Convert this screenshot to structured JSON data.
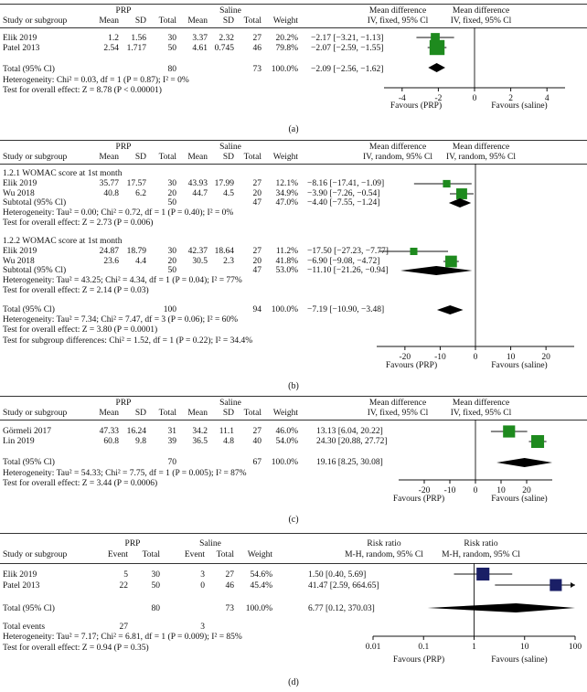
{
  "colors": {
    "green": "#1e8a1e",
    "navy": "#1a1f66",
    "line": "#111111"
  },
  "panels": [
    {
      "caption": "(a)",
      "headers": {
        "study": "Study or subgroup",
        "g1": "PRP",
        "g2": "Saline",
        "mean": "Mean",
        "sd": "SD",
        "total": "Total",
        "weight": "Weight",
        "effect_title": "Mean difference",
        "effect_method": "IV, fixed, 95% Cl",
        "plot_title": "Mean difference",
        "plot_method": "IV, fixed, 95% Cl"
      },
      "rows": [
        {
          "study": "Elik 2019",
          "m1": "1.2",
          "sd1": "1.56",
          "n1": "30",
          "m2": "3.37",
          "sd2": "2.32",
          "n2": "27",
          "w": "20.2%",
          "ci": "−2.17 [−3.21, −1.13]"
        },
        {
          "study": "Patel 2013",
          "m1": "2.54",
          "sd1": "1.717",
          "n1": "50",
          "m2": "4.61",
          "sd2": "0.745",
          "n2": "46",
          "w": "79.8%",
          "ci": "−2.07 [−2.59, −1.55]"
        }
      ],
      "total": {
        "label": "Total (95% Cl)",
        "n1": "80",
        "n2": "73",
        "w": "100.0%",
        "ci": "−2.09 [−2.56, −1.62]"
      },
      "notes": [
        "Heterogeneity: Chi² = 0.03, df = 1 (P = 0.87); I² = 0%",
        "Test for overall effect: Z = 8.78 (P < 0.00001)"
      ],
      "favours_left": "Favours (PRP)",
      "favours_right": "Favours (saline)"
    },
    {
      "caption": "(b)",
      "headers": {
        "study": "Study or subgroup",
        "g1": "PRP",
        "g2": "Saline",
        "mean": "Mean",
        "sd": "SD",
        "total": "Total",
        "weight": "Weight",
        "effect_title": "Mean difference",
        "effect_method": "IV, random, 95% Cl",
        "plot_title": "Mean difference",
        "plot_method": "IV, random, 95% Cl"
      },
      "subgroup1": {
        "title": "1.2.1 WOMAC score at 1st month",
        "rows": [
          {
            "study": "Elik 2019",
            "m1": "35.77",
            "sd1": "17.57",
            "n1": "30",
            "m2": "43.93",
            "sd2": "17.99",
            "n2": "27",
            "w": "12.1%",
            "ci": "−8.16 [−17.41, −1.09]"
          },
          {
            "study": "Wu 2018",
            "m1": "40.8",
            "sd1": "6.2",
            "n1": "20",
            "m2": "44.7",
            "sd2": "4.5",
            "n2": "20",
            "w": "34.9%",
            "ci": "−3.90 [−7.26, −0.54]"
          }
        ],
        "subtotal": {
          "label": "Subtotal (95% Cl)",
          "n1": "50",
          "n2": "47",
          "w": "47.0%",
          "ci": "−4.40 [−7.55, −1.24]"
        },
        "notes": [
          "Heterogeneity: Tau² = 0.00; Chi² = 0.72, df = 1 (P = 0.40); I² = 0%",
          "Test for overall effect: Z = 2.73 (P = 0.006)"
        ]
      },
      "subgroup2": {
        "title": "1.2.2 WOMAC score at 1st month",
        "rows": [
          {
            "study": "Elik 2019",
            "m1": "24.87",
            "sd1": "18.79",
            "n1": "30",
            "m2": "42.37",
            "sd2": "18.64",
            "n2": "27",
            "w": "11.2%",
            "ci": "−17.50 [−27.23, −7.77]"
          },
          {
            "study": "Wu 2018",
            "m1": "23.6",
            "sd1": "4.4",
            "n1": "20",
            "m2": "30.5",
            "sd2": "2.3",
            "n2": "20",
            "w": "41.8%",
            "ci": "−6.90 [−9.08, −4.72]"
          }
        ],
        "subtotal": {
          "label": "Subtotal (95% Cl)",
          "n1": "50",
          "n2": "47",
          "w": "53.0%",
          "ci": "−11.10 [−21.26, −0.94]"
        },
        "notes": [
          "Heterogeneity: Tau² = 43.25; Chi² = 4.34, df = 1 (P = 0.04); I² = 77%",
          "Test for overall effect: Z = 2.14 (P = 0.03)"
        ]
      },
      "total": {
        "label": "Total (95% Cl)",
        "n1": "100",
        "n2": "94",
        "w": "100.0%",
        "ci": "−7.19 [−10.90, −3.48]"
      },
      "notes": [
        "Heterogeneity: Tau² = 7.34; Chi² = 7.47, df = 3 (P = 0.06); I² = 60%",
        "Test for overall effect: Z = 3.80 (P = 0.0001)",
        "Test for subgroup differences: Chi² = 1.52, df = 1 (P = 0.22); I² = 34.4%"
      ],
      "favours_left": "Favours (PRP)",
      "favours_right": "Favours (saline)"
    },
    {
      "caption": "(c)",
      "headers": {
        "study": "Study or subgroup",
        "g1": "PRP",
        "g2": "Saline",
        "mean": "Mean",
        "sd": "SD",
        "total": "Total",
        "weight": "Weight",
        "effect_title": "Mean difference",
        "effect_method": "IV, fixed, 95% Cl",
        "plot_title": "Mean difference",
        "plot_method": "IV, fixed, 95% Cl"
      },
      "rows": [
        {
          "study": "Görmeli 2017",
          "m1": "47.33",
          "sd1": "16.24",
          "n1": "31",
          "m2": "34.2",
          "sd2": "11.1",
          "n2": "27",
          "w": "46.0%",
          "ci": "13.13 [6.04, 20.22]"
        },
        {
          "study": "Lin 2019",
          "m1": "60.8",
          "sd1": "9.8",
          "n1": "39",
          "m2": "36.5",
          "sd2": "4.8",
          "n2": "40",
          "w": "54.0%",
          "ci": "24.30 [20.88, 27.72]"
        }
      ],
      "total": {
        "label": "Total (95% Cl)",
        "n1": "70",
        "n2": "67",
        "w": "100.0%",
        "ci": "19.16 [8.25, 30.08]"
      },
      "notes": [
        "Heterogeneity: Tau² = 54.33; Chi² = 7.75, df = 1 (P = 0.005); I² = 87%",
        "Test for overall effect: Z = 3.44 (P = 0.0006)"
      ],
      "favours_left": "Favours (PRP)",
      "favours_right": "Favours (saline)"
    },
    {
      "caption": "(d)",
      "headers": {
        "study": "Study or subgroup",
        "g1": "PRP",
        "g2": "Saline",
        "event": "Event",
        "total": "Total",
        "weight": "Weight",
        "effect_title": "Risk ratio",
        "effect_method": "M-H, random, 95% Cl",
        "plot_title": "Risk ratio",
        "plot_method": "M-H, random, 95% Cl"
      },
      "rows": [
        {
          "study": "Elik 2019",
          "e1": "5",
          "n1": "30",
          "e2": "3",
          "n2": "27",
          "w": "54.6%",
          "ci": "1.50 [0.40, 5.69]"
        },
        {
          "study": "Patel 2013",
          "e1": "22",
          "n1": "50",
          "e2": "0",
          "n2": "46",
          "w": "45.4%",
          "ci": "41.47 [2.59, 664.65]"
        }
      ],
      "total": {
        "label": "Total (95% Cl)",
        "n1": "80",
        "n2": "73",
        "w": "100.0%",
        "ci": "6.77 [0.12, 370.03]"
      },
      "events": {
        "label": "Total events",
        "e1": "27",
        "e2": "3"
      },
      "notes": [
        "Heterogeneity: Tau² = 7.17; Chi² = 6.81, df = 1 (P = 0.009); I² = 85%",
        "Test for overall effect: Z = 0.94 (P = 0.35)"
      ],
      "favours_left": "Favours (PRP)",
      "favours_right": "Favours (saline)"
    }
  ],
  "chart_data": [
    {
      "type": "forest",
      "title": "(a)",
      "scale": "linear",
      "xlim": [
        -5,
        5
      ],
      "ticks": [
        -4,
        -2,
        0,
        2,
        4
      ],
      "color": "#1e8a1e",
      "studies": [
        {
          "name": "Elik 2019",
          "est": -2.17,
          "lo": -3.21,
          "hi": -1.13,
          "weight": 20.2
        },
        {
          "name": "Patel 2013",
          "est": -2.07,
          "lo": -2.59,
          "hi": -1.55,
          "weight": 79.8
        }
      ],
      "pooled": [
        {
          "name": "Total",
          "est": -2.09,
          "lo": -2.56,
          "hi": -1.62
        }
      ]
    },
    {
      "type": "forest",
      "title": "(b)",
      "scale": "linear",
      "xlim": [
        -28,
        28
      ],
      "ticks": [
        -20,
        -10,
        0,
        10,
        20
      ],
      "color": "#1e8a1e",
      "studies": [
        {
          "name": "Elik 2019",
          "est": -8.16,
          "lo": -17.41,
          "hi": -1.09,
          "weight": 12.1
        },
        {
          "name": "Wu 2018",
          "est": -3.9,
          "lo": -7.26,
          "hi": -0.54,
          "weight": 34.9
        },
        {
          "name": "Elik 2019",
          "est": -17.5,
          "lo": -27.23,
          "hi": -7.77,
          "weight": 11.2
        },
        {
          "name": "Wu 2018",
          "est": -6.9,
          "lo": -9.08,
          "hi": -4.72,
          "weight": 41.8
        }
      ],
      "pooled": [
        {
          "name": "Subtotal 1.2.1",
          "est": -4.4,
          "lo": -7.55,
          "hi": -1.24
        },
        {
          "name": "Subtotal 1.2.2",
          "est": -11.1,
          "lo": -21.26,
          "hi": -0.94
        },
        {
          "name": "Total",
          "est": -7.19,
          "lo": -10.9,
          "hi": -3.48
        }
      ]
    },
    {
      "type": "forest",
      "title": "(c)",
      "scale": "linear",
      "xlim": [
        -30,
        30
      ],
      "ticks": [
        -20,
        -10,
        0,
        10,
        20
      ],
      "color": "#1e8a1e",
      "studies": [
        {
          "name": "Görmeli 2017",
          "est": 13.13,
          "lo": 6.04,
          "hi": 20.22,
          "weight": 46.0
        },
        {
          "name": "Lin 2019",
          "est": 24.3,
          "lo": 20.88,
          "hi": 27.72,
          "weight": 54.0
        }
      ],
      "pooled": [
        {
          "name": "Total",
          "est": 19.16,
          "lo": 8.25,
          "hi": 30.08
        }
      ]
    },
    {
      "type": "forest",
      "title": "(d)",
      "scale": "log",
      "xlim": [
        0.01,
        100
      ],
      "ticks": [
        0.01,
        0.1,
        1,
        10,
        100
      ],
      "color": "#1a1f66",
      "studies": [
        {
          "name": "Elik 2019",
          "est": 1.5,
          "lo": 0.4,
          "hi": 5.69,
          "weight": 54.6
        },
        {
          "name": "Patel 2013",
          "est": 41.47,
          "lo": 2.59,
          "hi": 664.65,
          "weight": 45.4
        }
      ],
      "pooled": [
        {
          "name": "Total",
          "est": 6.77,
          "lo": 0.12,
          "hi": 370.03
        }
      ]
    }
  ]
}
